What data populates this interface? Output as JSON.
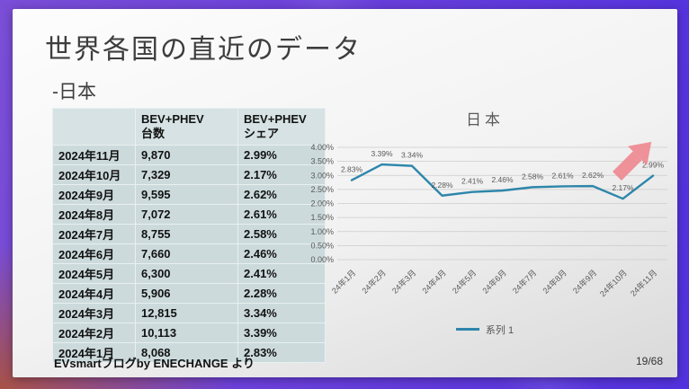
{
  "slide": {
    "title": "世界各国の直近のデータ",
    "subtitle": "-日本",
    "source": "EVsmartブログby ENECHANGE より",
    "page_number": "19/68"
  },
  "table": {
    "headers": [
      {
        "line1": "",
        "line2": ""
      },
      {
        "line1": "BEV+PHEV",
        "line2": "台数"
      },
      {
        "line1": "BEV+PHEV",
        "line2": "シェア"
      }
    ],
    "rows": [
      {
        "month": "2024年11月",
        "units": "9,870",
        "share": "2.99%"
      },
      {
        "month": "2024年10月",
        "units": "7,329",
        "share": "2.17%"
      },
      {
        "month": "2024年9月",
        "units": "9,595",
        "share": "2.62%"
      },
      {
        "month": "2024年8月",
        "units": "7,072",
        "share": "2.61%"
      },
      {
        "month": "2024年7月",
        "units": "8,755",
        "share": "2.58%"
      },
      {
        "month": "2024年6月",
        "units": "7,660",
        "share": "2.46%"
      },
      {
        "month": "2024年5月",
        "units": "6,300",
        "share": "2.41%"
      },
      {
        "month": "2024年4月",
        "units": "5,906",
        "share": "2.28%"
      },
      {
        "month": "2024年3月",
        "units": "12,815",
        "share": "3.34%"
      },
      {
        "month": "2024年2月",
        "units": "10,113",
        "share": "3.39%"
      },
      {
        "month": "2024年1月",
        "units": "8,068",
        "share": "2.83%"
      }
    ]
  },
  "chart_data": {
    "type": "line",
    "title": "日本",
    "x": [
      "24年1月",
      "24年2月",
      "24年3月",
      "24年4月",
      "24年5月",
      "24年6月",
      "24年7月",
      "24年8月",
      "24年9月",
      "24年10月",
      "24年11月"
    ],
    "values": [
      2.83,
      3.39,
      3.34,
      2.28,
      2.41,
      2.46,
      2.58,
      2.61,
      2.62,
      2.17,
      2.99
    ],
    "data_labels": [
      "2.83%",
      "3.39%",
      "3.34%",
      "2.28%",
      "2.41%",
      "2.46%",
      "2.58%",
      "2.61%",
      "2.62%",
      "2.17%",
      "2.99%"
    ],
    "xlabel": "",
    "ylabel": "",
    "ylim": [
      0,
      4
    ],
    "ytick_step": 0.5,
    "ytick_labels": [
      "0.00%",
      "0.50%",
      "1.00%",
      "1.50%",
      "2.00%",
      "2.50%",
      "3.00%",
      "3.50%",
      "4.00%"
    ],
    "grid": true,
    "legend": [
      "系列 1"
    ],
    "legend_position": "bottom",
    "line_color": "#2e86ab",
    "axis_text_color": "#595959",
    "grid_color": "#cccccc",
    "arrow_color": "#ef8a91"
  }
}
